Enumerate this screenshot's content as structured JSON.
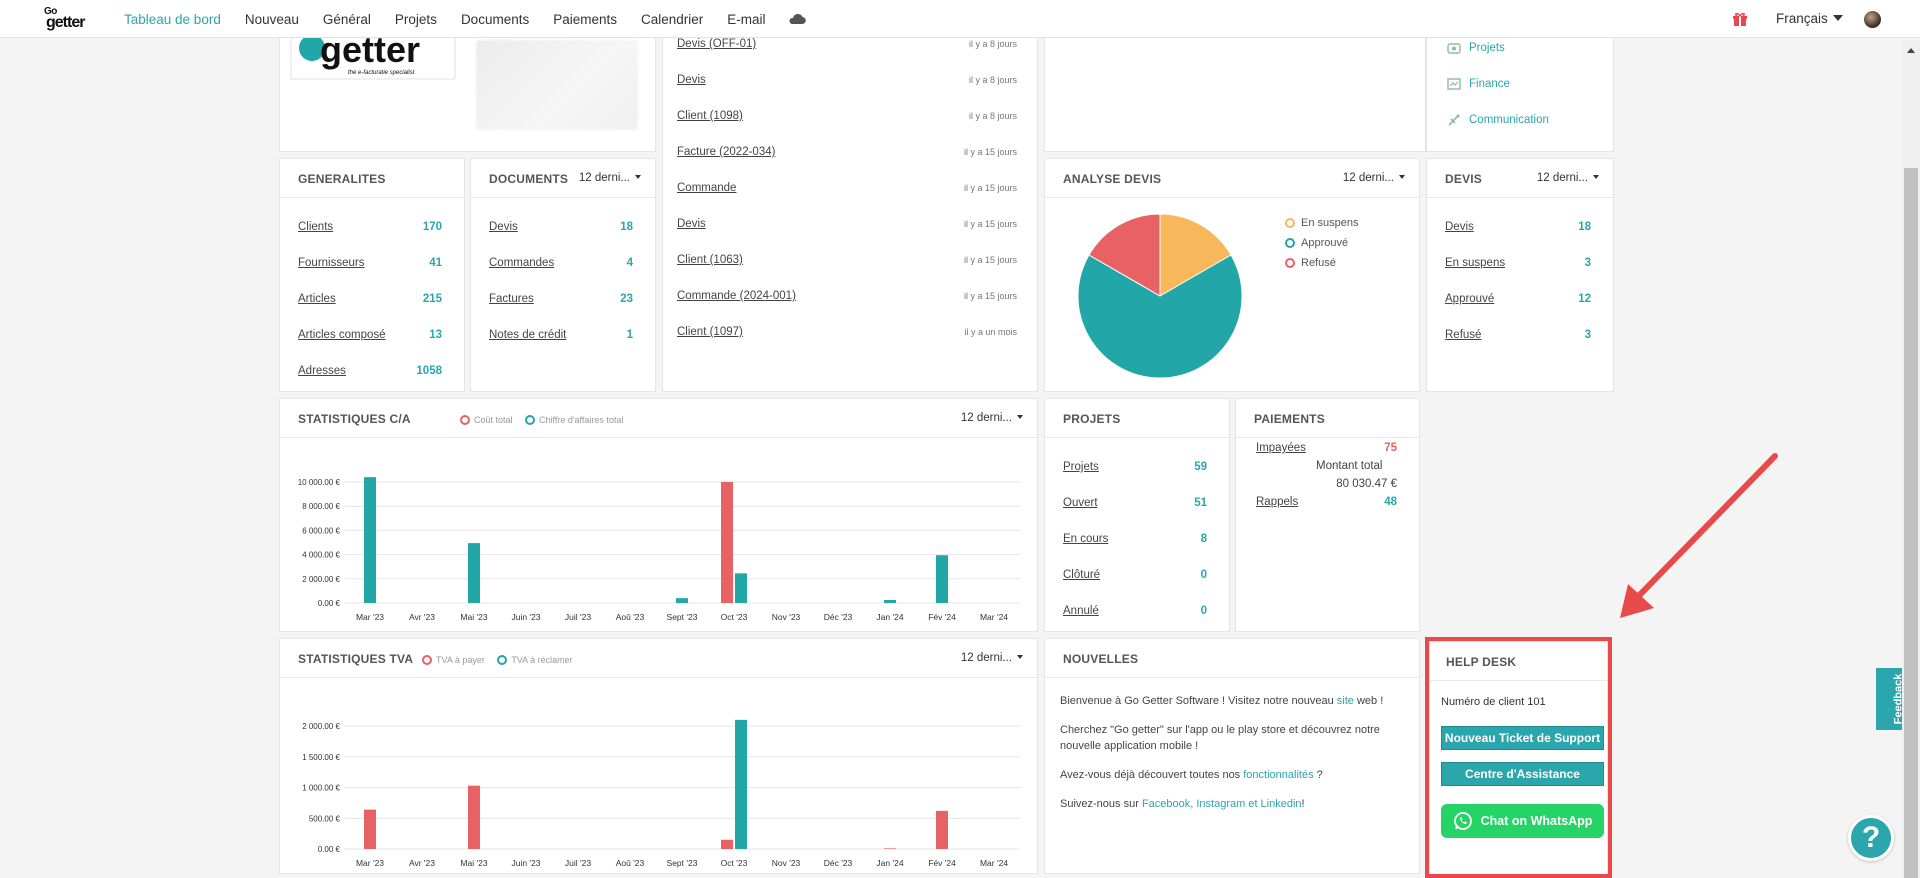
{
  "nav": {
    "logo_top": "Go",
    "logo_bottom": "getter",
    "items": [
      "Tableau de bord",
      "Nouveau",
      "Général",
      "Projets",
      "Documents",
      "Paiements",
      "Calendrier",
      "E-mail"
    ],
    "language": "Français"
  },
  "company_card": {
    "logo_text": "getter",
    "logo_tag": "the e-facturatie specialist"
  },
  "recent_activity": [
    {
      "label": "Devis (OFF-01)",
      "time": "il y a 8 jours"
    },
    {
      "label": "Devis",
      "time": "il y a 8 jours"
    },
    {
      "label": "Client (1098)",
      "time": "il y a 8 jours"
    },
    {
      "label": "Facture (2022-034)",
      "time": "il y a 15 jours"
    },
    {
      "label": "Commande",
      "time": "il y a 15 jours"
    },
    {
      "label": "Devis",
      "time": "il y a 15 jours"
    },
    {
      "label": "Client (1063)",
      "time": "il y a 15 jours"
    },
    {
      "label": "Commande (2024-001)",
      "time": "il y a 15 jours"
    },
    {
      "label": "Client (1097)",
      "time": "il y a un mois"
    }
  ],
  "side_links": [
    {
      "label": "Projets",
      "icon": "projects-icon"
    },
    {
      "label": "Finance",
      "icon": "finance-icon"
    },
    {
      "label": "Communication",
      "icon": "communication-icon"
    }
  ],
  "generalites": {
    "title": "GENERALITES",
    "rows": [
      {
        "label": "Clients",
        "value": "170"
      },
      {
        "label": "Fournisseurs",
        "value": "41"
      },
      {
        "label": "Articles",
        "value": "215"
      },
      {
        "label": "Articles composé",
        "value": "13"
      },
      {
        "label": "Adresses",
        "value": "1058"
      }
    ]
  },
  "documents": {
    "title": "DOCUMENTS",
    "period": "12 derni...",
    "rows": [
      {
        "label": "Devis",
        "value": "18"
      },
      {
        "label": "Commandes",
        "value": "4"
      },
      {
        "label": "Factures",
        "value": "23"
      },
      {
        "label": "Notes de crédit",
        "value": "1"
      }
    ]
  },
  "analyse_devis": {
    "title": "ANALYSE DEVIS",
    "period": "12 derni...",
    "legend": [
      {
        "label": "En suspens",
        "color": "#f7b75a"
      },
      {
        "label": "Approuvé",
        "color": "#22a6a8"
      },
      {
        "label": "Refusé",
        "color": "#e86164"
      }
    ]
  },
  "devis": {
    "title": "DEVIS",
    "period": "12 derni...",
    "rows": [
      {
        "label": "Devis",
        "value": "18"
      },
      {
        "label": "En suspens",
        "value": "3"
      },
      {
        "label": "Approuvé",
        "value": "12"
      },
      {
        "label": "Refusé",
        "value": "3"
      }
    ]
  },
  "stat_ca": {
    "title": "STATISTIQUES C/A",
    "period": "12 derni...",
    "legend": [
      "Coût total",
      "Chiffre d'affaires total"
    ]
  },
  "projets": {
    "title": "PROJETS",
    "rows": [
      {
        "label": "Projets",
        "value": "59"
      },
      {
        "label": "Ouvert",
        "value": "51"
      },
      {
        "label": "En cours",
        "value": "8"
      },
      {
        "label": "Clôturé",
        "value": "0"
      },
      {
        "label": "Annulé",
        "value": "0"
      }
    ]
  },
  "paiements": {
    "title": "PAIEMENTS",
    "impayees_label": "Impayées",
    "impayees_value": "75",
    "montant_label": "Montant total",
    "montant_value": "80 030.47 €",
    "rappels_label": "Rappels",
    "rappels_value": "48"
  },
  "stat_tva": {
    "title": "STATISTIQUES TVA",
    "period": "12 derni...",
    "legend": [
      "TVA à payer",
      "TVA à réclamer"
    ]
  },
  "nouvelles": {
    "title": "NOUVELLES",
    "p1_a": "Bienvenue à Go Getter Software ! Visitez notre nouveau ",
    "p1_link": "site",
    "p1_b": " web !",
    "p2": "Cherchez \"Go getter\" sur l'app ou le play store et découvrez notre nouvelle application mobile !",
    "p3_a": "Avez-vous déjà découvert toutes nos ",
    "p3_link": "fonctionnalités",
    "p3_b": " ?",
    "p4_a": "Suivez-nous sur ",
    "p4_link": "Facebook, Instagram et Linkedin",
    "p4_b": "!"
  },
  "helpdesk": {
    "title": "HELP DESK",
    "client_label": "Numéro de client",
    "client_number": "101",
    "btn_ticket": "Nouveau Ticket de Support",
    "btn_centre": "Centre d'Assistance",
    "btn_whatsapp": "Chat on WhatsApp"
  },
  "feedback_label": "Feedback",
  "help_fab": "?",
  "colors": {
    "accent": "#2aa6ac",
    "red": "#e86164",
    "orange": "#f7b75a",
    "whatsapp": "#25d366"
  },
  "chart_data": [
    {
      "type": "bar",
      "title": "STATISTIQUES C/A",
      "categories": [
        "Mar '23",
        "Avr '23",
        "Mai '23",
        "Juin '23",
        "Juil '23",
        "Aoû '23",
        "Sept '23",
        "Oct '23",
        "Nov '23",
        "Déc '23",
        "Jan '24",
        "Fév '24",
        "Mar '24"
      ],
      "series": [
        {
          "name": "Coût total",
          "color": "#e86164",
          "values": [
            0,
            0,
            0,
            0,
            0,
            0,
            0,
            10000,
            0,
            0,
            0,
            0,
            0
          ]
        },
        {
          "name": "Chiffre d'affaires total",
          "color": "#22a6a8",
          "values": [
            10400,
            0,
            4950,
            0,
            0,
            0,
            400,
            2450,
            0,
            0,
            250,
            3950,
            0
          ]
        }
      ],
      "yticks": [
        "0.00 €",
        "2 000.00 €",
        "4 000.00 €",
        "6 000.00 €",
        "8 000.00 €",
        "10 000.00 €"
      ],
      "ylim": [
        0,
        10000
      ]
    },
    {
      "type": "bar",
      "title": "STATISTIQUES TVA",
      "categories": [
        "Mar '23",
        "Avr '23",
        "Mai '23",
        "Juin '23",
        "Juil '23",
        "Aoû '23",
        "Sept '23",
        "Oct '23",
        "Nov '23",
        "Déc '23",
        "Jan '24",
        "Fév '24",
        "Mar '24"
      ],
      "series": [
        {
          "name": "TVA à payer",
          "color": "#e86164",
          "values": [
            640,
            0,
            1030,
            0,
            0,
            0,
            0,
            150,
            0,
            0,
            10,
            620,
            0
          ]
        },
        {
          "name": "TVA à réclamer",
          "color": "#22a6a8",
          "values": [
            0,
            0,
            0,
            0,
            0,
            0,
            0,
            2100,
            0,
            0,
            0,
            0,
            0
          ]
        }
      ],
      "yticks": [
        "0.00 €",
        "500.00 €",
        "1 000.00 €",
        "1 500.00 €",
        "2 000.00 €"
      ],
      "ylim": [
        0,
        2000
      ]
    },
    {
      "type": "pie",
      "title": "ANALYSE DEVIS",
      "categories": [
        "En suspens",
        "Approuvé",
        "Refusé"
      ],
      "values": [
        3,
        12,
        3
      ],
      "colors": [
        "#f7b75a",
        "#22a6a8",
        "#e86164"
      ]
    }
  ]
}
